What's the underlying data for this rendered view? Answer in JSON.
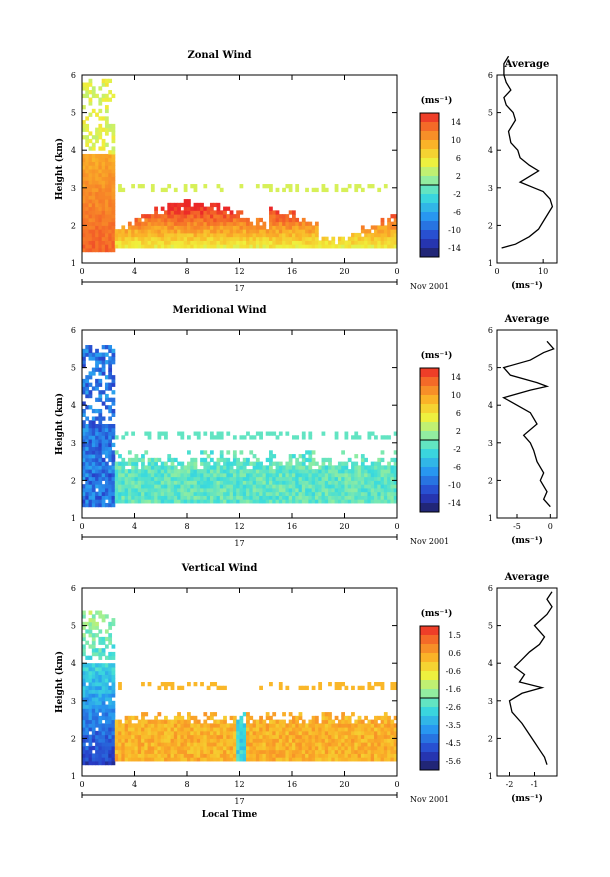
{
  "chart_data": [
    {
      "type": "heatmap",
      "title": "Zonal Wind",
      "ylabel": "Height (km)",
      "x_ticks": [
        "0",
        "4",
        "8",
        "12",
        "16",
        "20",
        "0"
      ],
      "y_ticks": [
        "1",
        "2",
        "3",
        "4",
        "5",
        "6"
      ],
      "xlim": [
        0,
        24
      ],
      "ylim": [
        1,
        6
      ],
      "date_day": "17",
      "date_month": "Nov 2001",
      "colorbar": {
        "unit": "(ms⁻¹)",
        "ticks": [
          "14",
          "10",
          "6",
          "2",
          "-2",
          "-6",
          "-10",
          "-14"
        ],
        "range": [
          -16,
          16
        ]
      },
      "average": {
        "title": "Average",
        "x_ticks": [
          "0",
          "10"
        ],
        "xlim": [
          0,
          13
        ],
        "xlabel": "(ms⁻¹)",
        "profile": [
          [
            1.4,
            1
          ],
          [
            1.5,
            4
          ],
          [
            1.7,
            7
          ],
          [
            1.9,
            9
          ],
          [
            2.1,
            10
          ],
          [
            2.3,
            11
          ],
          [
            2.5,
            12
          ],
          [
            2.7,
            11.5
          ],
          [
            2.9,
            10
          ],
          [
            3.0,
            8
          ],
          [
            3.15,
            5
          ],
          [
            3.3,
            7
          ],
          [
            3.45,
            9
          ],
          [
            3.6,
            7
          ],
          [
            3.8,
            5
          ],
          [
            4.0,
            4.5
          ],
          [
            4.2,
            3
          ],
          [
            4.5,
            2.5
          ],
          [
            4.8,
            4
          ],
          [
            5.0,
            3.5
          ],
          [
            5.2,
            2
          ],
          [
            5.4,
            1.5
          ],
          [
            5.6,
            3
          ],
          [
            5.8,
            2
          ],
          [
            6.0,
            1.5
          ],
          [
            6.3,
            1.5
          ],
          [
            6.5,
            2.5
          ]
        ]
      }
    },
    {
      "type": "heatmap",
      "title": "Meridional Wind",
      "ylabel": "Height (km)",
      "x_ticks": [
        "0",
        "4",
        "8",
        "12",
        "16",
        "20",
        "0"
      ],
      "y_ticks": [
        "1",
        "2",
        "3",
        "4",
        "5",
        "6"
      ],
      "xlim": [
        0,
        24
      ],
      "ylim": [
        1,
        6
      ],
      "date_day": "17",
      "date_month": "Nov 2001",
      "colorbar": {
        "unit": "(ms⁻¹)",
        "ticks": [
          "14",
          "10",
          "6",
          "2",
          "-2",
          "-6",
          "-10",
          "-14"
        ],
        "range": [
          -16,
          16
        ]
      },
      "average": {
        "title": "Average",
        "x_ticks": [
          "-5",
          "0"
        ],
        "xlim": [
          -8,
          1
        ],
        "xlabel": "(ms⁻¹)",
        "profile": [
          [
            1.3,
            0
          ],
          [
            1.5,
            -1
          ],
          [
            1.7,
            -0.5
          ],
          [
            2.0,
            -1.5
          ],
          [
            2.2,
            -1
          ],
          [
            2.5,
            -2
          ],
          [
            2.8,
            -2.5
          ],
          [
            3.0,
            -3
          ],
          [
            3.2,
            -4
          ],
          [
            3.5,
            -2
          ],
          [
            3.8,
            -3
          ],
          [
            4.0,
            -5
          ],
          [
            4.2,
            -7
          ],
          [
            4.4,
            -3
          ],
          [
            4.5,
            -0.5
          ],
          [
            4.6,
            -2
          ],
          [
            4.8,
            -6
          ],
          [
            5.0,
            -7
          ],
          [
            5.2,
            -3
          ],
          [
            5.4,
            -1
          ],
          [
            5.5,
            0.5
          ],
          [
            5.7,
            -0.5
          ]
        ]
      }
    },
    {
      "type": "heatmap",
      "title": "Vertical Wind",
      "ylabel": "Height (km)",
      "xlabel": "Local Time",
      "x_ticks": [
        "0",
        "4",
        "8",
        "12",
        "16",
        "20",
        "0"
      ],
      "y_ticks": [
        "1",
        "2",
        "3",
        "4",
        "5",
        "6"
      ],
      "xlim": [
        0,
        24
      ],
      "ylim": [
        1,
        6
      ],
      "date_day": "17",
      "date_month": "Nov 2001",
      "colorbar": {
        "unit": "(ms⁻¹)",
        "ticks": [
          "1.5",
          "0.6",
          "-0.6",
          "-1.6",
          "-2.6",
          "-3.5",
          "-4.5",
          "-5.6"
        ],
        "range": [
          -6.0,
          2.0
        ]
      },
      "average": {
        "title": "Average",
        "x_ticks": [
          "-2",
          "-1"
        ],
        "xlim": [
          -2.5,
          -0.1
        ],
        "xlabel": "(ms⁻¹)",
        "profile": [
          [
            1.3,
            -0.5
          ],
          [
            1.5,
            -0.6
          ],
          [
            1.7,
            -0.8
          ],
          [
            1.9,
            -1.0
          ],
          [
            2.1,
            -1.2
          ],
          [
            2.4,
            -1.5
          ],
          [
            2.7,
            -1.9
          ],
          [
            3.0,
            -2.0
          ],
          [
            3.2,
            -1.5
          ],
          [
            3.35,
            -0.7
          ],
          [
            3.5,
            -1.6
          ],
          [
            3.7,
            -1.4
          ],
          [
            3.9,
            -1.8
          ],
          [
            4.1,
            -1.5
          ],
          [
            4.3,
            -1.2
          ],
          [
            4.5,
            -0.8
          ],
          [
            4.7,
            -0.6
          ],
          [
            5.0,
            -1.0
          ],
          [
            5.3,
            -0.5
          ],
          [
            5.5,
            -0.3
          ],
          [
            5.7,
            -0.5
          ],
          [
            5.9,
            -0.3
          ]
        ]
      }
    }
  ]
}
